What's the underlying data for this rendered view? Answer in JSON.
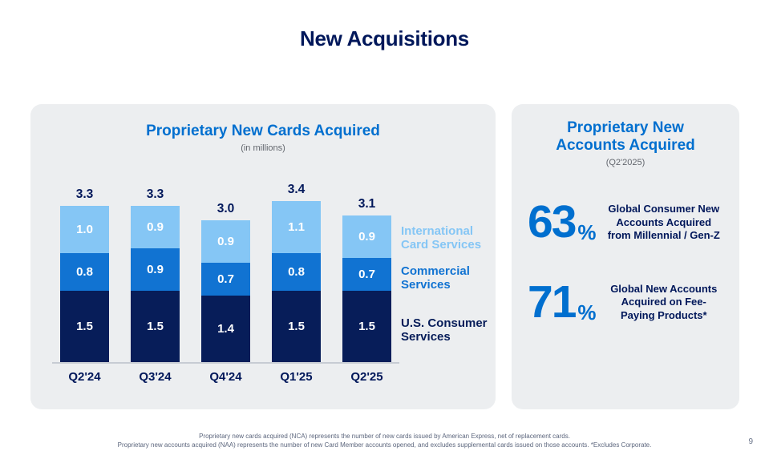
{
  "page": {
    "title": "New Acquisitions",
    "page_number": "9",
    "footnote_line1": "Proprietary new cards acquired (NCA) represents the number of new cards issued by American Express, net of replacement cards.",
    "footnote_line2": "Proprietary new accounts acquired (NAA) represents the number of new Card Member accounts opened, and excludes supplemental cards issued on those accounts. *Excludes Corporate."
  },
  "cards_panel": {
    "title": "Proprietary New Cards Acquired",
    "subtitle": "(in millions)"
  },
  "chart_data": {
    "type": "bar",
    "stacked": true,
    "title": "Proprietary New Cards Acquired",
    "unit": "in millions",
    "categories": [
      "Q2'24",
      "Q3'24",
      "Q4'24",
      "Q1'25",
      "Q2'25"
    ],
    "series": [
      {
        "name": "U.S. Consumer Services",
        "color": "#071D59",
        "values": [
          1.5,
          1.5,
          1.4,
          1.5,
          1.5
        ]
      },
      {
        "name": "Commercial Services",
        "color": "#1173D2",
        "values": [
          0.8,
          0.9,
          0.7,
          0.8,
          0.7
        ]
      },
      {
        "name": "International Card Services",
        "color": "#85C6F5",
        "values": [
          1.0,
          0.9,
          0.9,
          1.1,
          0.9
        ]
      }
    ],
    "totals": [
      3.3,
      3.3,
      3.0,
      3.4,
      3.1
    ],
    "ylim": [
      0,
      3.4
    ],
    "grid": false,
    "legend_position": "right",
    "value_labels": "inside-segments-white",
    "total_labels": "above-bars"
  },
  "accounts_panel": {
    "title": "Proprietary New\nAccounts Acquired",
    "subtitle": "(Q2'2025)",
    "stats": [
      {
        "value": "63",
        "unit": "%",
        "label": "Global Consumer New Accounts Acquired from Millennial / Gen-Z"
      },
      {
        "value": "71",
        "unit": "%",
        "label": "Global New Accounts Acquired on Fee-Paying Products*"
      }
    ]
  },
  "colors": {
    "accent_blue": "#006FCF",
    "deep_blue": "#00175A",
    "light_blue": "#85C6F5",
    "mid_blue": "#1173D2",
    "bar_navy": "#071D59",
    "card_background": "#ECEEF0",
    "axis_line": "#C7CCD3"
  }
}
